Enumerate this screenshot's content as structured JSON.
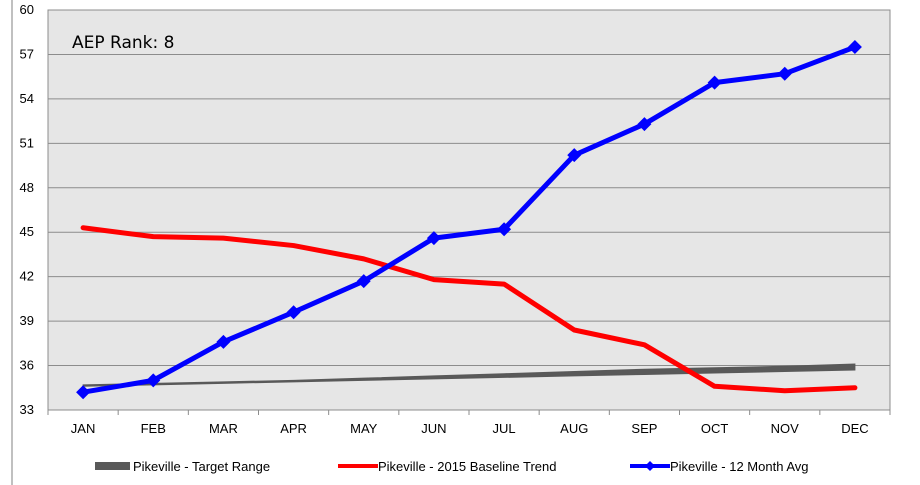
{
  "chart_data": {
    "type": "line",
    "categories": [
      "JAN",
      "FEB",
      "MAR",
      "APR",
      "MAY",
      "JUN",
      "JUL",
      "AUG",
      "SEP",
      "OCT",
      "NOV",
      "DEC"
    ],
    "ylim": [
      33,
      60
    ],
    "yticks": [
      33,
      36,
      39,
      42,
      45,
      48,
      51,
      54,
      57,
      60
    ],
    "grid": true,
    "legend_position": "bottom",
    "annotation": "AEP Rank: 8",
    "series": [
      {
        "name": "Pikeville - Target Range",
        "style": "band",
        "color": "#595959",
        "lower": [
          34.6,
          34.7,
          34.8,
          34.9,
          35.0,
          35.1,
          35.2,
          35.3,
          35.4,
          35.5,
          35.6,
          35.7
        ],
        "upper": [
          34.7,
          34.8,
          34.9,
          35.0,
          35.15,
          35.3,
          35.45,
          35.6,
          35.75,
          35.85,
          35.95,
          36.1
        ]
      },
      {
        "name": "Pikeville - 2015 Baseline Trend",
        "style": "line",
        "color": "#ff0000",
        "values": [
          45.3,
          44.7,
          44.6,
          44.1,
          43.2,
          41.8,
          41.5,
          38.4,
          37.4,
          34.6,
          34.3,
          34.5
        ]
      },
      {
        "name": "Pikeville - 12 Month Avg",
        "style": "line-markers",
        "color": "#0000ff",
        "values": [
          34.2,
          35.0,
          37.6,
          39.6,
          41.7,
          44.6,
          45.2,
          50.2,
          52.3,
          55.1,
          55.7,
          57.5
        ]
      }
    ]
  }
}
